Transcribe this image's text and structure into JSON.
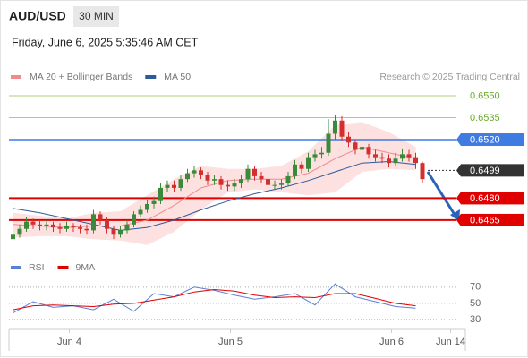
{
  "header": {
    "symbol": "AUD/USD",
    "interval": "30 MIN",
    "timestamp": "Friday, June 6, 2025 5:35:46 AM CET"
  },
  "chart_data": [
    {
      "type": "candlestick",
      "credit": "Research © 2025 Trading Central",
      "xlim": [
        -0.6,
        67.4
      ],
      "ylim": [
        0.64411,
        0.65665
      ],
      "up_color": "#3a8a3a",
      "down_color": "#d32f2f",
      "open": [
        0.6452,
        0.6455,
        0.6459,
        0.6464,
        0.6462,
        0.6461,
        0.6462,
        0.646,
        0.6459,
        0.6461,
        0.646,
        0.6459,
        0.6458,
        0.6469,
        0.6465,
        0.6459,
        0.6455,
        0.6458,
        0.6462,
        0.6469,
        0.6472,
        0.6476,
        0.6478,
        0.6487,
        0.6489,
        0.6487,
        0.6493,
        0.6497,
        0.6499,
        0.6496,
        0.6492,
        0.6493,
        0.6489,
        0.6488,
        0.649,
        0.6493,
        0.65,
        0.6495,
        0.6493,
        0.6489,
        0.6489,
        0.649,
        0.6495,
        0.6503,
        0.65,
        0.6508,
        0.651,
        0.6511,
        0.6524,
        0.6533,
        0.6522,
        0.6518,
        0.6513,
        0.6515,
        0.651,
        0.6508,
        0.6507,
        0.6504,
        0.6507,
        0.651,
        0.6508,
        0.6504
      ],
      "high": [
        0.6458,
        0.6462,
        0.6467,
        0.6466,
        0.6465,
        0.6465,
        0.6464,
        0.6463,
        0.6464,
        0.6463,
        0.6462,
        0.6462,
        0.6472,
        0.6471,
        0.6467,
        0.6461,
        0.6461,
        0.6465,
        0.6471,
        0.6475,
        0.6479,
        0.6481,
        0.649,
        0.6492,
        0.6492,
        0.6496,
        0.65,
        0.6502,
        0.6501,
        0.6498,
        0.6496,
        0.6495,
        0.6492,
        0.6493,
        0.6496,
        0.6503,
        0.6502,
        0.6498,
        0.6495,
        0.6492,
        0.6493,
        0.6498,
        0.6506,
        0.6505,
        0.6511,
        0.6513,
        0.6515,
        0.6534,
        0.6537,
        0.6536,
        0.6525,
        0.652,
        0.6518,
        0.6517,
        0.6513,
        0.6511,
        0.651,
        0.6511,
        0.6514,
        0.6513,
        0.6511,
        0.6505
      ],
      "low": [
        0.6447,
        0.6453,
        0.6457,
        0.6459,
        0.6458,
        0.6458,
        0.6457,
        0.6456,
        0.6457,
        0.6457,
        0.6456,
        0.6455,
        0.6456,
        0.6462,
        0.6456,
        0.6452,
        0.6453,
        0.6456,
        0.646,
        0.6467,
        0.647,
        0.6473,
        0.6476,
        0.6484,
        0.6484,
        0.6485,
        0.6491,
        0.6494,
        0.6493,
        0.6489,
        0.6489,
        0.6486,
        0.6485,
        0.6485,
        0.6487,
        0.6491,
        0.6492,
        0.649,
        0.6486,
        0.6486,
        0.6486,
        0.6488,
        0.6493,
        0.6497,
        0.6498,
        0.6505,
        0.6507,
        0.6509,
        0.652,
        0.6519,
        0.6515,
        0.651,
        0.651,
        0.6507,
        0.6505,
        0.6504,
        0.6501,
        0.6502,
        0.6505,
        0.6505,
        0.65,
        0.649
      ],
      "close": [
        0.6455,
        0.6459,
        0.6464,
        0.6462,
        0.6461,
        0.6462,
        0.646,
        0.6459,
        0.6461,
        0.646,
        0.6459,
        0.6458,
        0.6469,
        0.6465,
        0.6459,
        0.6455,
        0.6458,
        0.6462,
        0.6469,
        0.6472,
        0.6476,
        0.6478,
        0.6487,
        0.6489,
        0.6487,
        0.6493,
        0.6497,
        0.6499,
        0.6496,
        0.6492,
        0.6493,
        0.6489,
        0.6488,
        0.649,
        0.6493,
        0.65,
        0.6495,
        0.6493,
        0.6489,
        0.6489,
        0.649,
        0.6495,
        0.6503,
        0.65,
        0.6508,
        0.651,
        0.6511,
        0.6524,
        0.6533,
        0.6522,
        0.6518,
        0.6513,
        0.6515,
        0.651,
        0.6508,
        0.6507,
        0.6504,
        0.6507,
        0.651,
        0.6508,
        0.6504,
        0.6493
      ],
      "series": [
        {
          "name": "MA 20 + Bollinger Bands",
          "color": "#f28b8b",
          "band_color": "#fde0e0",
          "x": [
            0,
            4,
            8,
            12,
            16,
            20,
            24,
            28,
            32,
            36,
            40,
            44,
            48,
            52,
            56,
            60
          ],
          "values": [
            0.6462,
            0.6461,
            0.646,
            0.6461,
            0.6461,
            0.6465,
            0.6475,
            0.6487,
            0.6492,
            0.6493,
            0.6493,
            0.6497,
            0.6507,
            0.6515,
            0.6511,
            0.6507
          ],
          "upper": [
            0.647,
            0.6468,
            0.6466,
            0.647,
            0.6471,
            0.6482,
            0.6493,
            0.6502,
            0.65,
            0.65,
            0.6502,
            0.6512,
            0.653,
            0.6532,
            0.6525,
            0.6515
          ],
          "lower": [
            0.6453,
            0.6454,
            0.6454,
            0.6452,
            0.6451,
            0.6448,
            0.6457,
            0.6472,
            0.6484,
            0.6486,
            0.6484,
            0.6482,
            0.6484,
            0.6498,
            0.65,
            0.6499
          ]
        },
        {
          "name": "MA 50",
          "color": "#2d5a9a",
          "x": [
            0,
            4,
            8,
            12,
            16,
            20,
            24,
            28,
            32,
            36,
            40,
            44,
            48,
            52,
            56,
            60
          ],
          "values": [
            0.6473,
            0.647,
            0.6466,
            0.6462,
            0.6458,
            0.646,
            0.6465,
            0.6472,
            0.6478,
            0.6483,
            0.6487,
            0.6492,
            0.6498,
            0.6504,
            0.6505,
            0.6503
          ]
        }
      ],
      "levels": [
        {
          "value": 0.655,
          "label": "0.6550",
          "color": "#8bc34a",
          "style": "text"
        },
        {
          "value": 0.6535,
          "label": "0.6535",
          "color": "#8bc34a",
          "style": "text"
        },
        {
          "value": 0.652,
          "label": "0.6520",
          "color": "#3f7be0",
          "style": "box"
        },
        {
          "value": 0.6499,
          "label": "0.6499",
          "color": "#333333",
          "style": "dotted"
        },
        {
          "value": 0.648,
          "label": "0.6480",
          "color": "#e00000",
          "style": "box"
        },
        {
          "value": 0.6465,
          "label": "0.6465",
          "color": "#e00000",
          "style": "box"
        }
      ]
    },
    {
      "type": "line",
      "xlim": [
        -0.6,
        67.4
      ],
      "ylim": [
        21,
        82
      ],
      "yticks": [
        70,
        50,
        30
      ],
      "xticks": [
        {
          "value": 8.4,
          "label": "Jun 4"
        },
        {
          "value": 32.4,
          "label": "Jun 5"
        },
        {
          "value": 56.4,
          "label": "Jun 6"
        },
        {
          "value": 65.2,
          "label": "Jun 14"
        }
      ],
      "series": [
        {
          "name": "RSI",
          "color": "#5b7fd6",
          "x": [
            0,
            3,
            6,
            9,
            12,
            15,
            18,
            21,
            24,
            27,
            30,
            33,
            36,
            39,
            42,
            45,
            48,
            51,
            54,
            57,
            60
          ],
          "values": [
            38,
            52,
            45,
            47,
            42,
            55,
            40,
            62,
            58,
            70,
            66,
            60,
            55,
            58,
            62,
            48,
            74,
            58,
            52,
            46,
            44
          ]
        },
        {
          "name": "9MA",
          "color": "#e00000",
          "x": [
            0,
            3,
            6,
            9,
            12,
            15,
            18,
            21,
            24,
            27,
            30,
            33,
            36,
            39,
            42,
            45,
            48,
            51,
            54,
            57,
            60
          ],
          "values": [
            42,
            47,
            48,
            47,
            46,
            49,
            50,
            54,
            58,
            64,
            67,
            65,
            60,
            57,
            58,
            57,
            62,
            62,
            56,
            50,
            47
          ]
        }
      ]
    }
  ]
}
